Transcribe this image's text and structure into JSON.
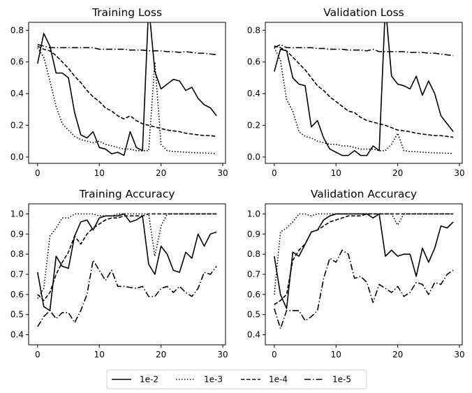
{
  "legend": {
    "entries": [
      {
        "label": "1e-2",
        "dash": "solid"
      },
      {
        "label": "1e-3",
        "dash": "dotted"
      },
      {
        "label": "1e-4",
        "dash": "dashed"
      },
      {
        "label": "1e-5",
        "dash": "dashdot"
      }
    ],
    "placement": "bottom-center"
  },
  "chart_data": [
    {
      "type": "line",
      "title": "Training Loss",
      "xlabel": "",
      "ylabel": "",
      "xlim": [
        -1.45,
        30.45
      ],
      "ylim": [
        -0.04,
        0.85
      ],
      "xticks": [
        0,
        10,
        20,
        30
      ],
      "yticks": [
        0.0,
        0.2,
        0.4,
        0.6,
        0.8
      ],
      "ytick_labels": [
        "0.0",
        "0.2",
        "0.4",
        "0.6",
        "0.8"
      ],
      "x": [
        0,
        1,
        2,
        3,
        4,
        5,
        6,
        7,
        8,
        9,
        10,
        11,
        12,
        13,
        14,
        15,
        16,
        17,
        18,
        19,
        20,
        21,
        22,
        23,
        24,
        25,
        26,
        27,
        28,
        29
      ],
      "series": [
        {
          "name": "1e-2",
          "values": [
            0.59,
            0.78,
            0.7,
            0.53,
            0.53,
            0.5,
            0.28,
            0.14,
            0.12,
            0.16,
            0.06,
            0.05,
            0.02,
            0.03,
            0.01,
            0.16,
            0.06,
            0.04,
            0.96,
            0.54,
            0.43,
            0.46,
            0.49,
            0.48,
            0.42,
            0.44,
            0.37,
            0.33,
            0.31,
            0.26
          ]
        },
        {
          "name": "1e-3",
          "values": [
            0.69,
            0.63,
            0.48,
            0.32,
            0.21,
            0.17,
            0.13,
            0.11,
            0.1,
            0.09,
            0.1,
            0.08,
            0.07,
            0.06,
            0.05,
            0.05,
            0.04,
            0.04,
            0.04,
            0.6,
            0.08,
            0.04,
            0.035,
            0.033,
            0.03,
            0.028,
            0.026,
            0.025,
            0.024,
            0.022
          ]
        },
        {
          "name": "1e-4",
          "values": [
            0.7,
            0.68,
            0.67,
            0.64,
            0.6,
            0.56,
            0.51,
            0.47,
            0.42,
            0.38,
            0.35,
            0.31,
            0.29,
            0.26,
            0.24,
            0.26,
            0.23,
            0.21,
            0.2,
            0.19,
            0.18,
            0.17,
            0.165,
            0.16,
            0.15,
            0.145,
            0.14,
            0.135,
            0.135,
            0.13
          ]
        },
        {
          "name": "1e-5",
          "values": [
            0.71,
            0.7,
            0.69,
            0.69,
            0.69,
            0.69,
            0.69,
            0.69,
            0.69,
            0.69,
            0.68,
            0.68,
            0.68,
            0.68,
            0.68,
            0.675,
            0.675,
            0.675,
            0.67,
            0.67,
            0.67,
            0.665,
            0.665,
            0.66,
            0.665,
            0.66,
            0.655,
            0.655,
            0.65,
            0.645
          ]
        }
      ]
    },
    {
      "type": "line",
      "title": "Validation Loss",
      "xlabel": "",
      "ylabel": "",
      "xlim": [
        -1.45,
        30.45
      ],
      "ylim": [
        -0.04,
        0.85
      ],
      "xticks": [
        0,
        10,
        20,
        30
      ],
      "yticks": [
        0.0,
        0.2,
        0.4,
        0.6,
        0.8
      ],
      "ytick_labels": [
        "0.0",
        "0.2",
        "0.4",
        "0.6",
        "0.8"
      ],
      "x": [
        0,
        1,
        2,
        3,
        4,
        5,
        6,
        7,
        8,
        9,
        10,
        11,
        12,
        13,
        14,
        15,
        16,
        17,
        18,
        19,
        20,
        21,
        22,
        23,
        24,
        25,
        26,
        27,
        28,
        29
      ],
      "series": [
        {
          "name": "1e-2",
          "values": [
            0.54,
            0.68,
            0.67,
            0.5,
            0.46,
            0.45,
            0.19,
            0.23,
            0.12,
            0.05,
            0.03,
            0.01,
            0.01,
            0.04,
            0.01,
            0.01,
            0.07,
            0.04,
            0.96,
            0.51,
            0.46,
            0.45,
            0.43,
            0.51,
            0.39,
            0.48,
            0.4,
            0.26,
            0.21,
            0.16
          ]
        },
        {
          "name": "1e-3",
          "values": [
            0.69,
            0.61,
            0.36,
            0.29,
            0.16,
            0.13,
            0.12,
            0.1,
            0.09,
            0.08,
            0.08,
            0.07,
            0.07,
            0.06,
            0.05,
            0.05,
            0.05,
            0.04,
            0.04,
            0.08,
            0.15,
            0.04,
            0.035,
            0.033,
            0.03,
            0.028,
            0.026,
            0.025,
            0.024,
            0.022
          ]
        },
        {
          "name": "1e-4",
          "values": [
            0.7,
            0.69,
            0.67,
            0.63,
            0.59,
            0.55,
            0.5,
            0.45,
            0.42,
            0.38,
            0.35,
            0.32,
            0.29,
            0.28,
            0.25,
            0.23,
            0.22,
            0.21,
            0.2,
            0.185,
            0.17,
            0.165,
            0.16,
            0.15,
            0.145,
            0.14,
            0.135,
            0.135,
            0.13,
            0.125
          ]
        },
        {
          "name": "1e-5",
          "values": [
            0.69,
            0.71,
            0.69,
            0.69,
            0.69,
            0.69,
            0.69,
            0.685,
            0.685,
            0.68,
            0.68,
            0.68,
            0.675,
            0.675,
            0.675,
            0.67,
            0.68,
            0.665,
            0.665,
            0.665,
            0.665,
            0.665,
            0.66,
            0.66,
            0.66,
            0.655,
            0.655,
            0.65,
            0.645,
            0.64
          ]
        }
      ]
    },
    {
      "type": "line",
      "title": "Training Accuracy",
      "xlabel": "",
      "ylabel": "",
      "xlim": [
        -1.45,
        30.45
      ],
      "ylim": [
        0.35,
        1.05
      ],
      "xticks": [
        0,
        10,
        20,
        30
      ],
      "yticks": [
        0.4,
        0.5,
        0.6,
        0.7,
        0.8,
        0.9,
        1.0
      ],
      "ytick_labels": [
        "0.4",
        "0.5",
        "0.6",
        "0.7",
        "0.8",
        "0.9",
        "1.0"
      ],
      "x": [
        0,
        1,
        2,
        3,
        4,
        5,
        6,
        7,
        8,
        9,
        10,
        11,
        12,
        13,
        14,
        15,
        16,
        17,
        18,
        19,
        20,
        21,
        22,
        23,
        24,
        25,
        26,
        27,
        28,
        29
      ],
      "series": [
        {
          "name": "1e-2",
          "values": [
            0.71,
            0.54,
            0.52,
            0.79,
            0.74,
            0.73,
            0.89,
            0.96,
            0.97,
            0.92,
            0.98,
            0.99,
            0.99,
            0.99,
            1.0,
            0.96,
            0.97,
            0.99,
            0.75,
            0.7,
            0.84,
            0.8,
            0.72,
            0.71,
            0.81,
            0.78,
            0.9,
            0.84,
            0.9,
            0.91
          ]
        },
        {
          "name": "1e-3",
          "values": [
            0.58,
            0.63,
            0.89,
            0.93,
            0.98,
            0.98,
            1.0,
            1.0,
            1.0,
            1.0,
            0.99,
            0.99,
            0.99,
            1.0,
            1.0,
            1.0,
            1.0,
            1.0,
            1.0,
            0.79,
            0.94,
            1.0,
            1.0,
            1.0,
            1.0,
            1.0,
            1.0,
            1.0,
            1.0,
            1.0
          ]
        },
        {
          "name": "1e-4",
          "values": [
            0.6,
            0.57,
            0.61,
            0.7,
            0.76,
            0.81,
            0.89,
            0.85,
            0.9,
            0.93,
            0.95,
            0.97,
            0.98,
            0.98,
            0.99,
            0.99,
            0.99,
            0.99,
            1.0,
            1.0,
            1.0,
            1.0,
            1.0,
            1.0,
            1.0,
            1.0,
            1.0,
            1.0,
            1.0,
            1.0
          ]
        },
        {
          "name": "1e-5",
          "values": [
            0.44,
            0.49,
            0.52,
            0.48,
            0.51,
            0.51,
            0.46,
            0.52,
            0.6,
            0.77,
            0.72,
            0.67,
            0.72,
            0.64,
            0.64,
            0.635,
            0.63,
            0.64,
            0.59,
            0.59,
            0.63,
            0.64,
            0.61,
            0.64,
            0.61,
            0.59,
            0.63,
            0.71,
            0.7,
            0.74
          ]
        }
      ]
    },
    {
      "type": "line",
      "title": "Validation Accuracy",
      "xlabel": "",
      "ylabel": "",
      "xlim": [
        -1.45,
        30.45
      ],
      "ylim": [
        0.35,
        1.05
      ],
      "xticks": [
        0,
        10,
        20,
        30
      ],
      "yticks": [
        0.4,
        0.5,
        0.6,
        0.7,
        0.8,
        0.9,
        1.0
      ],
      "ytick_labels": [
        "0.4",
        "0.5",
        "0.6",
        "0.7",
        "0.8",
        "0.9",
        "1.0"
      ],
      "x": [
        0,
        1,
        2,
        3,
        4,
        5,
        6,
        7,
        8,
        9,
        10,
        11,
        12,
        13,
        14,
        15,
        16,
        17,
        18,
        19,
        20,
        21,
        22,
        23,
        24,
        25,
        26,
        27,
        28,
        29
      ],
      "series": [
        {
          "name": "1e-2",
          "values": [
            0.79,
            0.6,
            0.53,
            0.81,
            0.79,
            0.85,
            0.91,
            0.92,
            0.97,
            0.99,
            1.0,
            1.0,
            1.0,
            1.0,
            1.0,
            1.0,
            0.98,
            1.0,
            0.79,
            0.82,
            0.79,
            0.8,
            0.8,
            0.69,
            0.83,
            0.76,
            0.83,
            0.94,
            0.93,
            0.96
          ]
        },
        {
          "name": "1e-3",
          "values": [
            0.6,
            0.91,
            0.93,
            0.96,
            1.0,
            1.0,
            0.99,
            1.0,
            1.0,
            1.0,
            1.0,
            1.0,
            1.0,
            1.0,
            1.0,
            1.0,
            1.0,
            1.0,
            1.0,
            1.0,
            0.945,
            1.0,
            1.0,
            1.0,
            1.0,
            1.0,
            1.0,
            1.0,
            1.0,
            1.0
          ]
        },
        {
          "name": "1e-4",
          "values": [
            0.55,
            0.57,
            0.6,
            0.77,
            0.82,
            0.85,
            0.91,
            0.92,
            0.94,
            0.96,
            0.97,
            0.98,
            0.99,
            0.99,
            0.99,
            1.0,
            1.0,
            1.0,
            1.0,
            1.0,
            1.0,
            1.0,
            1.0,
            1.0,
            1.0,
            1.0,
            1.0,
            1.0,
            1.0,
            1.0
          ]
        },
        {
          "name": "1e-5",
          "values": [
            0.53,
            0.43,
            0.52,
            0.52,
            0.52,
            0.47,
            0.49,
            0.52,
            0.68,
            0.78,
            0.76,
            0.82,
            0.8,
            0.68,
            0.69,
            0.66,
            0.56,
            0.65,
            0.63,
            0.61,
            0.64,
            0.59,
            0.61,
            0.66,
            0.65,
            0.6,
            0.66,
            0.65,
            0.7,
            0.72
          ]
        }
      ]
    }
  ]
}
